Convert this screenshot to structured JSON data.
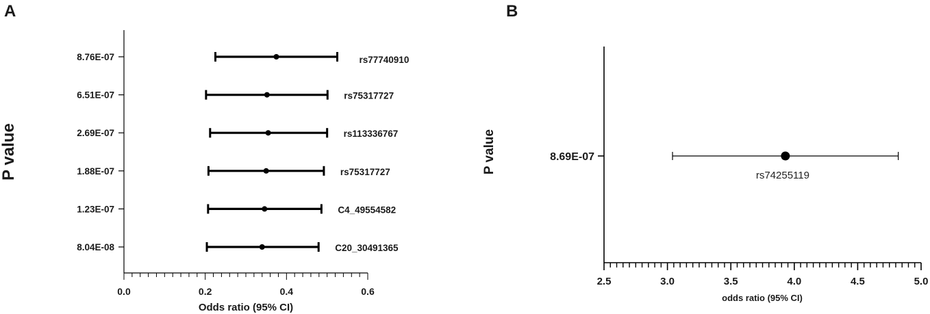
{
  "chart_data": [
    {
      "panel": "A",
      "type": "scatter",
      "subtype": "forest-plot",
      "xlabel": "Odds ratio (95% CI)",
      "ylabel": "P value",
      "xlim": [
        0.0,
        0.6
      ],
      "xticks": [
        "0.0",
        "0.2",
        "0.4",
        "0.6"
      ],
      "rows": [
        {
          "p": "8.76E-07",
          "snp": "rs77740910",
          "or": 0.375,
          "lo": 0.225,
          "hi": 0.525
        },
        {
          "p": "6.51E-07",
          "snp": "rs75317727",
          "or": 0.352,
          "lo": 0.202,
          "hi": 0.501
        },
        {
          "p": "2.69E-07",
          "snp": "rs113336767",
          "or": 0.355,
          "lo": 0.212,
          "hi": 0.5
        },
        {
          "p": "1.88E-07",
          "snp": "rs75317727",
          "or": 0.35,
          "lo": 0.208,
          "hi": 0.492
        },
        {
          "p": "1.23E-07",
          "snp": "C4_49554582",
          "or": 0.346,
          "lo": 0.207,
          "hi": 0.486
        },
        {
          "p": "8.04E-08",
          "snp": "C20_30491365",
          "or": 0.34,
          "lo": 0.204,
          "hi": 0.479
        }
      ]
    },
    {
      "panel": "B",
      "type": "scatter",
      "subtype": "forest-plot",
      "xlabel": "odds ratio (95% CI)",
      "ylabel": "P value",
      "xlim": [
        2.5,
        5.0
      ],
      "xticks": [
        "2.5",
        "3.0",
        "3.5",
        "4.0",
        "4.5",
        "5.0"
      ],
      "rows": [
        {
          "p": "8.69E-07",
          "snp": "rs74255119",
          "or": 3.93,
          "lo": 3.04,
          "hi": 4.82
        }
      ]
    }
  ]
}
